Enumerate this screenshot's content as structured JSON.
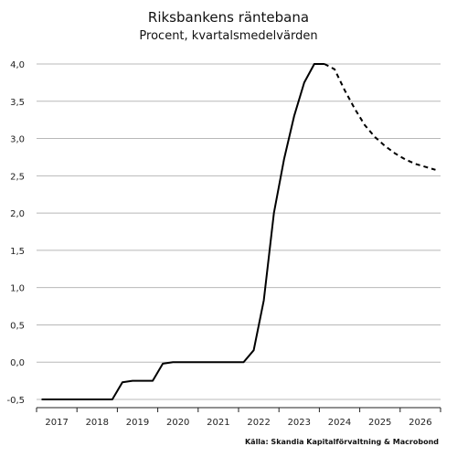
{
  "chart_data": {
    "type": "line",
    "title": "Riksbankens räntebana",
    "subtitle": "Procent, kvartalsmedelvärden",
    "source": "Källa: Skandia Kapitalförvaltning & Macrobond",
    "x_categories": [
      "2017",
      "2018",
      "2019",
      "2020",
      "2021",
      "2022",
      "2023",
      "2024",
      "2025",
      "2026"
    ],
    "ylim": [
      -0.5,
      4.0
    ],
    "y_ticks": [
      -0.5,
      0.0,
      0.5,
      1.0,
      1.5,
      2.0,
      2.5,
      3.0,
      3.5,
      4.0
    ],
    "y_tick_labels": [
      "-0,5",
      "0,0",
      "0,5",
      "1,0",
      "1,5",
      "2,0",
      "2,5",
      "3,0",
      "3,5",
      "4,0"
    ],
    "grid": true,
    "series": [
      {
        "style": "solid",
        "x": [
          "2017-Q1",
          "2017-Q2",
          "2017-Q3",
          "2017-Q4",
          "2018-Q1",
          "2018-Q2",
          "2018-Q3",
          "2018-Q4",
          "2019-Q1",
          "2019-Q2",
          "2019-Q3",
          "2019-Q4",
          "2020-Q1",
          "2020-Q2",
          "2020-Q3",
          "2020-Q4",
          "2021-Q1",
          "2021-Q2",
          "2021-Q3",
          "2021-Q4",
          "2022-Q1",
          "2022-Q2",
          "2022-Q3",
          "2022-Q4",
          "2023-Q1",
          "2023-Q2",
          "2023-Q3",
          "2023-Q4",
          "2024-Q1"
        ],
        "y": [
          -0.5,
          -0.5,
          -0.5,
          -0.5,
          -0.5,
          -0.5,
          -0.5,
          -0.5,
          -0.27,
          -0.25,
          -0.25,
          -0.25,
          -0.02,
          0.0,
          0.0,
          0.0,
          0.0,
          0.0,
          0.0,
          0.0,
          0.0,
          0.16,
          0.83,
          2.0,
          2.72,
          3.3,
          3.75,
          4.0,
          4.0
        ]
      },
      {
        "style": "dashed",
        "x": [
          "2024-Q1",
          "2024-Q2",
          "2024-Q3",
          "2024-Q4",
          "2025-Q1",
          "2025-Q2",
          "2025-Q3",
          "2025-Q4",
          "2026-Q1",
          "2026-Q2",
          "2026-Q3",
          "2026-Q4"
        ],
        "y": [
          4.0,
          3.93,
          3.65,
          3.4,
          3.18,
          3.02,
          2.9,
          2.8,
          2.72,
          2.66,
          2.62,
          2.58
        ]
      }
    ]
  }
}
